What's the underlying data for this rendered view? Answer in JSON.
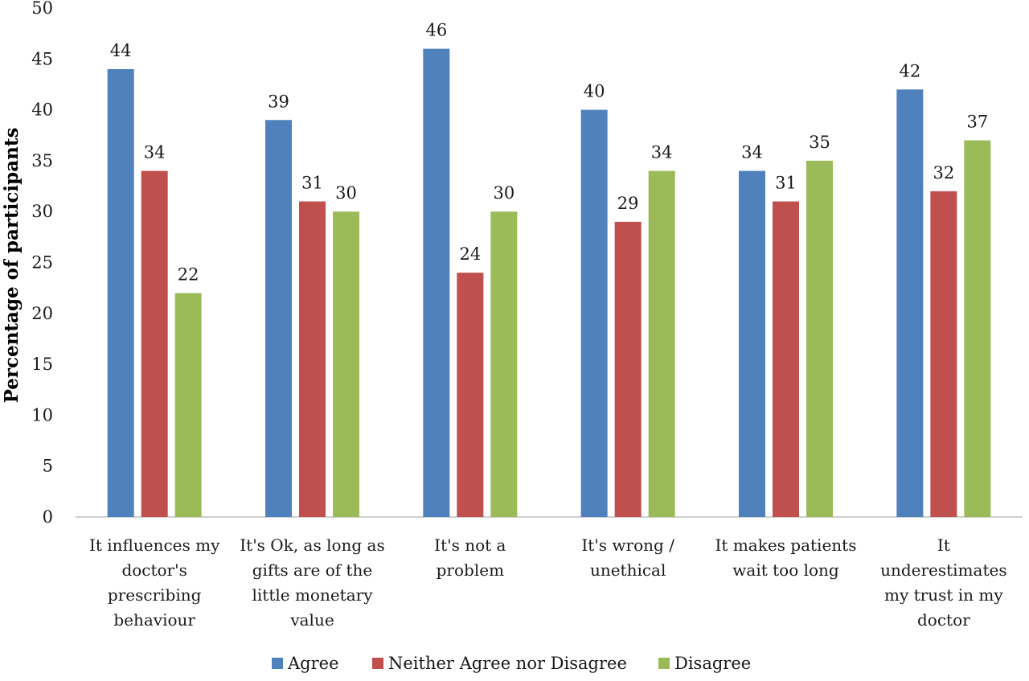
{
  "chart_data": {
    "type": "bar",
    "title": "",
    "xlabel": "",
    "ylabel": "Percentage of participants",
    "ylim": [
      0,
      50
    ],
    "yticks": [
      0,
      5,
      10,
      15,
      20,
      25,
      30,
      35,
      40,
      45,
      50
    ],
    "grid": false,
    "legend_position": "bottom",
    "categories": [
      [
        "It influences my",
        "doctor's",
        "prescribing",
        "behaviour"
      ],
      [
        "It's Ok, as long as",
        "gifts are of the",
        "little monetary",
        "value"
      ],
      [
        "It's not a",
        "problem"
      ],
      [
        "It's wrong /",
        "unethical"
      ],
      [
        "It makes patients",
        "wait too long"
      ],
      [
        "It",
        "underestimates",
        "my trust in my",
        "doctor"
      ]
    ],
    "series": [
      {
        "name": "Agree",
        "color": "#4f81bd",
        "values": [
          44,
          39,
          46,
          40,
          34,
          42
        ]
      },
      {
        "name": "Neither Agree nor Disagree",
        "color": "#c0504d",
        "values": [
          34,
          31,
          24,
          29,
          31,
          32
        ]
      },
      {
        "name": "Disagree",
        "color": "#9bbb59",
        "values": [
          22,
          30,
          30,
          34,
          35,
          37
        ]
      }
    ]
  }
}
